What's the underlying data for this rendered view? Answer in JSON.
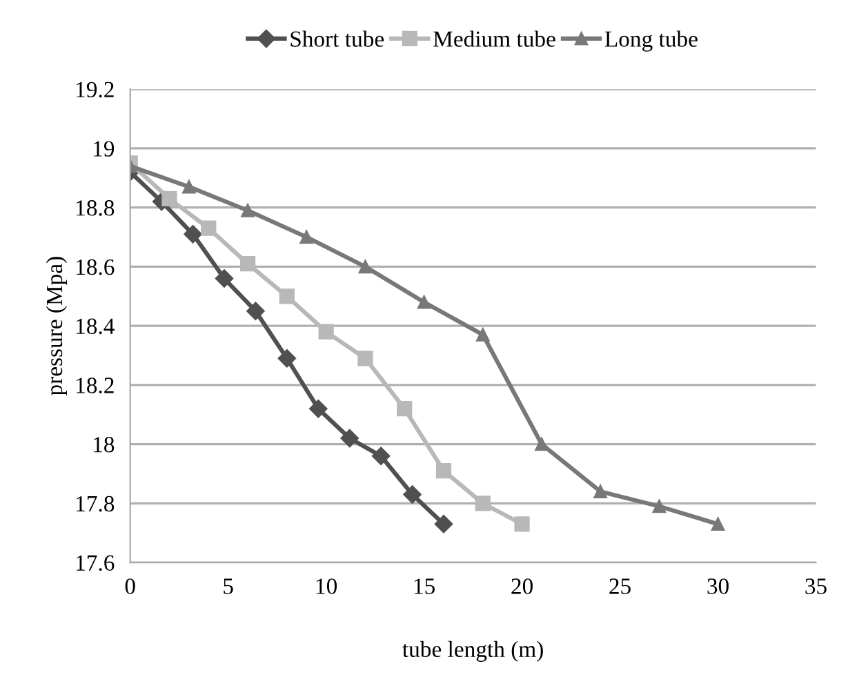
{
  "chart_data": {
    "type": "line",
    "xlabel": "tube length (m)",
    "ylabel": "pressure (Mpa)",
    "xlim": [
      0,
      35
    ],
    "xticks": [
      0,
      5,
      10,
      15,
      20,
      25,
      30,
      35
    ],
    "ylim": [
      17.6,
      19.2
    ],
    "yticks": [
      17.6,
      17.8,
      18,
      18.2,
      18.4,
      18.6,
      18.8,
      19,
      19.2
    ],
    "grid": "y",
    "legend": "top",
    "series": [
      {
        "name": "Short tube",
        "color": "#505050",
        "marker": "diamond",
        "x": [
          0,
          1.6,
          3.2,
          4.8,
          6.4,
          8,
          9.6,
          11.2,
          12.8,
          14.4,
          16
        ],
        "values": [
          18.92,
          18.82,
          18.71,
          18.56,
          18.45,
          18.29,
          18.12,
          18.02,
          17.96,
          17.83,
          17.73
        ]
      },
      {
        "name": "Medium tube",
        "color": "#b8b8b8",
        "marker": "square",
        "x": [
          0,
          2,
          4,
          6,
          8,
          10,
          12,
          14,
          16,
          18,
          20
        ],
        "values": [
          18.95,
          18.83,
          18.73,
          18.61,
          18.5,
          18.38,
          18.29,
          18.12,
          17.91,
          17.8,
          17.73
        ]
      },
      {
        "name": "Long tube",
        "color": "#787878",
        "marker": "triangle",
        "x": [
          0,
          3,
          6,
          9,
          12,
          15,
          18,
          21,
          24,
          27,
          30
        ],
        "values": [
          18.94,
          18.87,
          18.79,
          18.7,
          18.6,
          18.48,
          18.37,
          18.0,
          17.84,
          17.79,
          17.73
        ]
      }
    ]
  }
}
